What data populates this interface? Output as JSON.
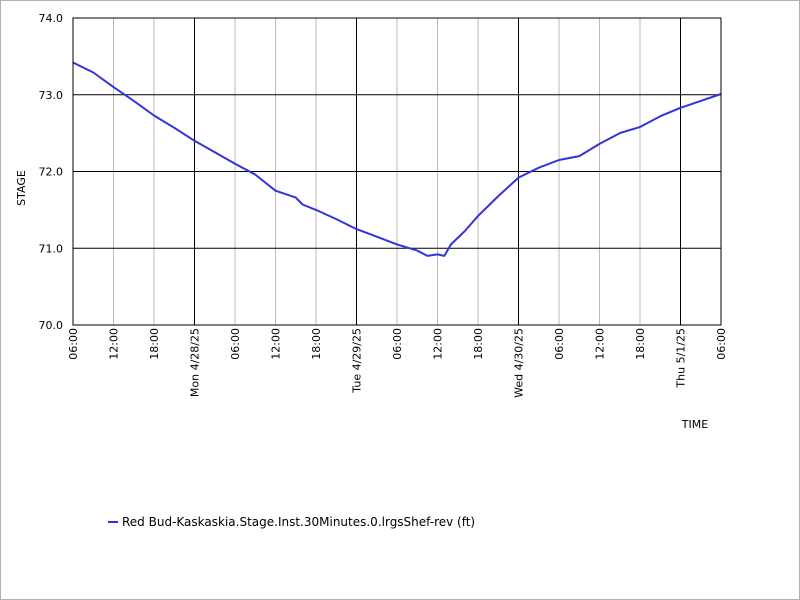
{
  "chart_data": {
    "type": "line",
    "xlabel": "TIME",
    "ylabel": "STAGE",
    "ylim": [
      70.0,
      74.0
    ],
    "xlim": [
      "2025-04-27T06:00",
      "2025-05-01T06:00"
    ],
    "y_ticks": [
      "70.0",
      "71.0",
      "72.0",
      "73.0",
      "74.0"
    ],
    "x_ticks": [
      {
        "t": "2025-04-27T06:00",
        "label": "06:00",
        "major": false
      },
      {
        "t": "2025-04-27T12:00",
        "label": "12:00",
        "major": false
      },
      {
        "t": "2025-04-27T18:00",
        "label": "18:00",
        "major": false
      },
      {
        "t": "2025-04-28T00:00",
        "label": "Mon 4/28/25",
        "major": true
      },
      {
        "t": "2025-04-28T06:00",
        "label": "06:00",
        "major": false
      },
      {
        "t": "2025-04-28T12:00",
        "label": "12:00",
        "major": false
      },
      {
        "t": "2025-04-28T18:00",
        "label": "18:00",
        "major": false
      },
      {
        "t": "2025-04-29T00:00",
        "label": "Tue 4/29/25",
        "major": true
      },
      {
        "t": "2025-04-29T06:00",
        "label": "06:00",
        "major": false
      },
      {
        "t": "2025-04-29T12:00",
        "label": "12:00",
        "major": false
      },
      {
        "t": "2025-04-29T18:00",
        "label": "18:00",
        "major": false
      },
      {
        "t": "2025-04-30T00:00",
        "label": "Wed 4/30/25",
        "major": true
      },
      {
        "t": "2025-04-30T06:00",
        "label": "06:00",
        "major": false
      },
      {
        "t": "2025-04-30T12:00",
        "label": "12:00",
        "major": false
      },
      {
        "t": "2025-04-30T18:00",
        "label": "18:00",
        "major": false
      },
      {
        "t": "2025-05-01T00:00",
        "label": "Thu 5/1/25",
        "major": true
      },
      {
        "t": "2025-05-01T06:00",
        "label": "06:00",
        "major": false
      }
    ],
    "grid": true,
    "legend_position": "bottom-left",
    "series": [
      {
        "name": "Red Bud-Kaskaskia.Stage.Inst.30Minutes.0.lrgsShef-rev (ft)",
        "color": "#3333dd",
        "points": [
          [
            "2025-04-27T06:00",
            73.42
          ],
          [
            "2025-04-27T09:00",
            73.29
          ],
          [
            "2025-04-27T12:00",
            73.1
          ],
          [
            "2025-04-27T15:00",
            72.92
          ],
          [
            "2025-04-27T18:00",
            72.73
          ],
          [
            "2025-04-27T21:00",
            72.57
          ],
          [
            "2025-04-28T00:00",
            72.4
          ],
          [
            "2025-04-28T03:00",
            72.25
          ],
          [
            "2025-04-28T06:00",
            72.1
          ],
          [
            "2025-04-28T09:00",
            71.96
          ],
          [
            "2025-04-28T12:00",
            71.75
          ],
          [
            "2025-04-28T15:00",
            71.66
          ],
          [
            "2025-04-28T16:00",
            71.57
          ],
          [
            "2025-04-28T18:00",
            71.5
          ],
          [
            "2025-04-28T21:00",
            71.38
          ],
          [
            "2025-04-29T00:00",
            71.25
          ],
          [
            "2025-04-29T03:00",
            71.15
          ],
          [
            "2025-04-29T06:00",
            71.05
          ],
          [
            "2025-04-29T09:00",
            70.97
          ],
          [
            "2025-04-29T10:30",
            70.9
          ],
          [
            "2025-04-29T12:00",
            70.92
          ],
          [
            "2025-04-29T13:00",
            70.9
          ],
          [
            "2025-04-29T14:00",
            71.05
          ],
          [
            "2025-04-29T16:00",
            71.22
          ],
          [
            "2025-04-29T18:00",
            71.42
          ],
          [
            "2025-04-29T21:00",
            71.68
          ],
          [
            "2025-04-30T00:00",
            71.92
          ],
          [
            "2025-04-30T03:00",
            72.05
          ],
          [
            "2025-04-30T06:00",
            72.15
          ],
          [
            "2025-04-30T09:00",
            72.2
          ],
          [
            "2025-04-30T12:00",
            72.36
          ],
          [
            "2025-04-30T15:00",
            72.5
          ],
          [
            "2025-04-30T18:00",
            72.58
          ],
          [
            "2025-04-30T21:00",
            72.72
          ],
          [
            "2025-05-01T00:00",
            72.83
          ],
          [
            "2025-05-01T03:00",
            72.92
          ],
          [
            "2025-05-01T06:00",
            73.01
          ]
        ]
      }
    ]
  }
}
